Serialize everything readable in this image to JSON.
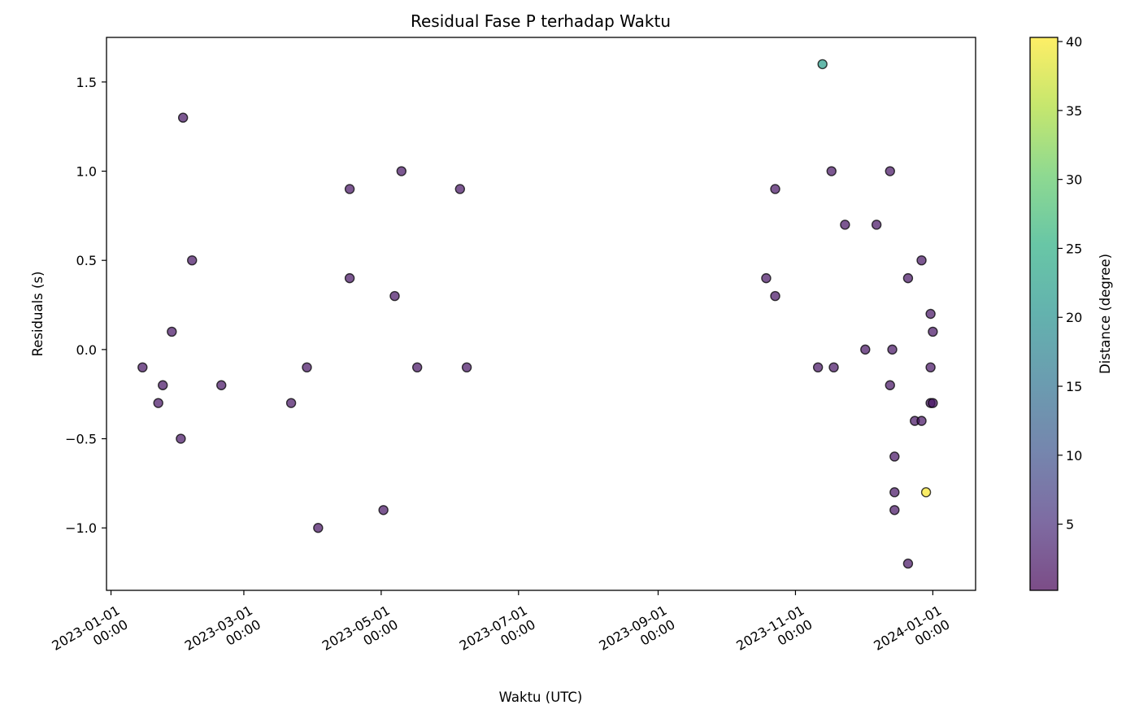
{
  "chart_data": {
    "type": "scatter",
    "title": "Residual Fase P terhadap Waktu",
    "xlabel": "Waktu (UTC)",
    "ylabel": "Residuals (s)",
    "xlim": [
      "2022-12-30",
      "2024-01-20"
    ],
    "ylim": [
      -1.35,
      1.75
    ],
    "x_ticks": [
      {
        "date": "2023-01-01",
        "line1": "2023-01-01",
        "line2": "00:00"
      },
      {
        "date": "2023-03-01",
        "line1": "2023-03-01",
        "line2": "00:00"
      },
      {
        "date": "2023-05-01",
        "line1": "2023-05-01",
        "line2": "00:00"
      },
      {
        "date": "2023-07-01",
        "line1": "2023-07-01",
        "line2": "00:00"
      },
      {
        "date": "2023-09-01",
        "line1": "2023-09-01",
        "line2": "00:00"
      },
      {
        "date": "2023-11-01",
        "line1": "2023-11-01",
        "line2": "00:00"
      },
      {
        "date": "2024-01-01",
        "line1": "2024-01-01",
        "line2": "00:00"
      }
    ],
    "y_ticks": [
      {
        "value": 1.5,
        "label": "1.5"
      },
      {
        "value": 1.0,
        "label": "1.0"
      },
      {
        "value": 0.5,
        "label": "0.5"
      },
      {
        "value": 0.0,
        "label": "0.0"
      },
      {
        "value": -0.5,
        "label": "−0.5"
      },
      {
        "value": -1.0,
        "label": "−1.0"
      }
    ],
    "colorbar": {
      "label": "Distance (degree)",
      "range": [
        0.2,
        40.3
      ],
      "colormap": "viridis",
      "alpha": 0.7,
      "ticks": [
        {
          "value": 5,
          "label": "5"
        },
        {
          "value": 10,
          "label": "10"
        },
        {
          "value": 15,
          "label": "15"
        },
        {
          "value": 20,
          "label": "20"
        },
        {
          "value": 25,
          "label": "25"
        },
        {
          "value": 30,
          "label": "30"
        },
        {
          "value": 35,
          "label": "35"
        },
        {
          "value": 40,
          "label": "40"
        }
      ]
    },
    "points": [
      {
        "x": "2023-01-15",
        "y": -0.1,
        "distance": 2.0
      },
      {
        "x": "2023-01-22",
        "y": -0.3,
        "distance": 2.0
      },
      {
        "x": "2023-01-24",
        "y": -0.2,
        "distance": 2.0
      },
      {
        "x": "2023-01-28",
        "y": 0.1,
        "distance": 2.0
      },
      {
        "x": "2023-02-01",
        "y": -0.5,
        "distance": 2.0
      },
      {
        "x": "2023-02-02",
        "y": 1.3,
        "distance": 2.0
      },
      {
        "x": "2023-02-06",
        "y": 0.5,
        "distance": 2.0
      },
      {
        "x": "2023-02-19",
        "y": -0.2,
        "distance": 2.0
      },
      {
        "x": "2023-03-22",
        "y": -0.3,
        "distance": 2.0
      },
      {
        "x": "2023-03-29",
        "y": -0.1,
        "distance": 2.0
      },
      {
        "x": "2023-04-03",
        "y": -1.0,
        "distance": 2.0
      },
      {
        "x": "2023-04-17",
        "y": 0.9,
        "distance": 2.0
      },
      {
        "x": "2023-04-17",
        "y": 0.4,
        "distance": 2.0
      },
      {
        "x": "2023-05-02",
        "y": -0.9,
        "distance": 2.0
      },
      {
        "x": "2023-05-07",
        "y": 0.3,
        "distance": 2.0
      },
      {
        "x": "2023-05-10",
        "y": 1.0,
        "distance": 2.0
      },
      {
        "x": "2023-05-17",
        "y": -0.1,
        "distance": 2.0
      },
      {
        "x": "2023-06-05",
        "y": 0.9,
        "distance": 2.0
      },
      {
        "x": "2023-06-08",
        "y": -0.1,
        "distance": 2.0
      },
      {
        "x": "2023-10-19",
        "y": 0.4,
        "distance": 2.0
      },
      {
        "x": "2023-10-23",
        "y": 0.9,
        "distance": 2.0
      },
      {
        "x": "2023-10-23",
        "y": 0.3,
        "distance": 2.0
      },
      {
        "x": "2023-11-11",
        "y": -0.1,
        "distance": 2.0
      },
      {
        "x": "2023-11-13",
        "y": 1.6,
        "distance": 22.0
      },
      {
        "x": "2023-11-17",
        "y": 1.0,
        "distance": 2.0
      },
      {
        "x": "2023-11-18",
        "y": -0.1,
        "distance": 2.0
      },
      {
        "x": "2023-11-23",
        "y": 0.7,
        "distance": 2.0
      },
      {
        "x": "2023-12-02",
        "y": 0.0,
        "distance": 2.0
      },
      {
        "x": "2023-12-07",
        "y": 0.7,
        "distance": 2.0
      },
      {
        "x": "2023-12-13",
        "y": -0.2,
        "distance": 2.0
      },
      {
        "x": "2023-12-13",
        "y": 1.0,
        "distance": 2.0
      },
      {
        "x": "2023-12-14",
        "y": 0.0,
        "distance": 2.0
      },
      {
        "x": "2023-12-15",
        "y": -0.6,
        "distance": 2.0
      },
      {
        "x": "2023-12-15",
        "y": -0.8,
        "distance": 2.0
      },
      {
        "x": "2023-12-15",
        "y": -0.9,
        "distance": 2.0
      },
      {
        "x": "2023-12-21",
        "y": -1.2,
        "distance": 2.0
      },
      {
        "x": "2023-12-21",
        "y": 0.4,
        "distance": 2.0
      },
      {
        "x": "2023-12-24",
        "y": -0.4,
        "distance": 2.0
      },
      {
        "x": "2023-12-27",
        "y": 0.5,
        "distance": 2.0
      },
      {
        "x": "2023-12-27",
        "y": -0.4,
        "distance": 2.0
      },
      {
        "x": "2023-12-29",
        "y": -0.8,
        "distance": 40.0
      },
      {
        "x": "2023-12-31",
        "y": 0.2,
        "distance": 2.0
      },
      {
        "x": "2023-12-31",
        "y": -0.1,
        "distance": 2.0
      },
      {
        "x": "2023-12-31",
        "y": -0.3,
        "distance": 2.0
      },
      {
        "x": "2024-01-01",
        "y": 0.1,
        "distance": 2.0
      },
      {
        "x": "2024-01-01",
        "y": -0.3,
        "distance": 2.0
      }
    ]
  }
}
